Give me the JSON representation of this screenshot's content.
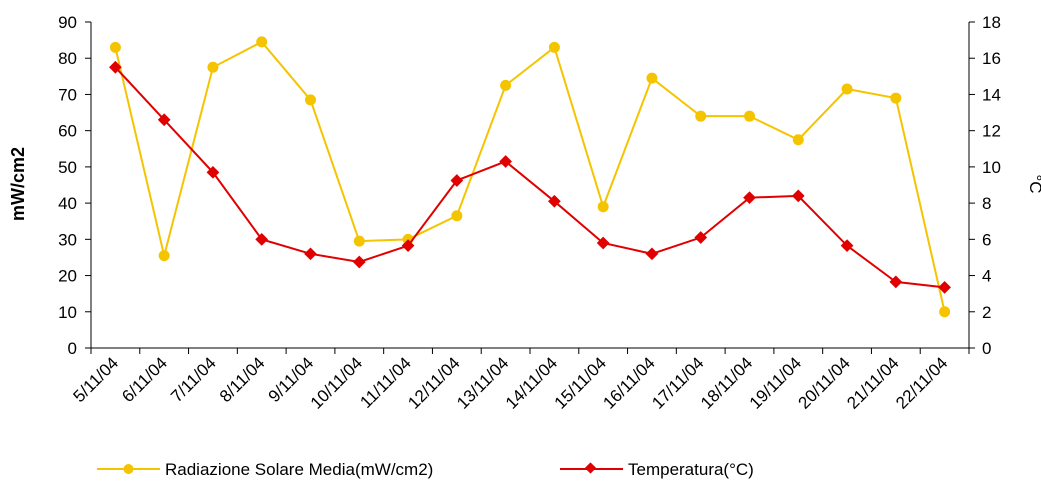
{
  "chart_data": {
    "type": "line",
    "categories": [
      "5/11/04",
      "6/11/04",
      "7/11/04",
      "8/11/04",
      "9/11/04",
      "10/11/04",
      "11/11/04",
      "12/11/04",
      "13/11/04",
      "14/11/04",
      "15/11/04",
      "16/11/04",
      "17/11/04",
      "18/11/04",
      "19/11/04",
      "20/11/04",
      "21/11/04",
      "22/11/04"
    ],
    "ylabel": "mW/cm2",
    "y2label": "°C",
    "ylim": [
      0,
      90
    ],
    "yticks": [
      0,
      10,
      20,
      30,
      40,
      50,
      60,
      70,
      80,
      90
    ],
    "y2lim": [
      0,
      18
    ],
    "y2ticks": [
      0,
      2,
      4,
      6,
      8,
      10,
      12,
      14,
      16,
      18
    ],
    "grid": false,
    "legend_position": "bottom",
    "series": [
      {
        "name": "Radiazione Solare Media(mW/cm2)",
        "axis": "left",
        "color": "#f5c400",
        "marker": "circle",
        "values": [
          83,
          25.5,
          77.5,
          84.5,
          68.5,
          29.5,
          30,
          36.5,
          72.5,
          83,
          39,
          74.5,
          64,
          64,
          57.5,
          71.5,
          69,
          10
        ]
      },
      {
        "name": "Temperatura(°C)",
        "axis": "right",
        "color": "#e00000",
        "marker": "diamond",
        "values": [
          15.5,
          12.6,
          9.7,
          6.0,
          5.2,
          4.75,
          5.65,
          9.25,
          10.3,
          8.1,
          5.8,
          5.2,
          6.1,
          8.3,
          8.4,
          5.65,
          3.65,
          3.35
        ]
      }
    ]
  }
}
